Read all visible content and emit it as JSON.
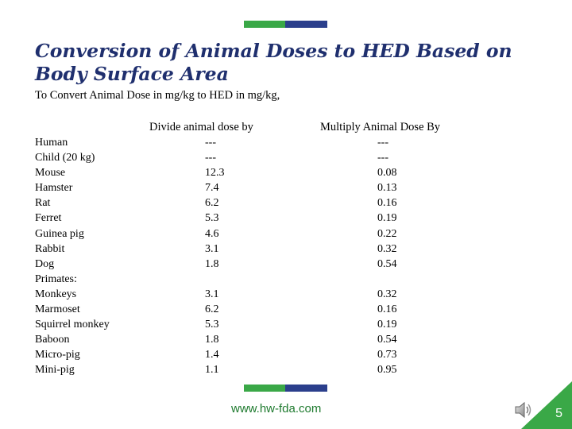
{
  "slide": {
    "title": "Conversion of Animal Doses to HED Based on Body Surface Area",
    "subtitle": "To Convert Animal Dose in mg/kg to HED in mg/kg,",
    "footer_url": "www.hw-fda.com",
    "page_number": "5"
  },
  "table": {
    "headers": {
      "divide": "Divide animal dose by",
      "multiply": "Multiply Animal Dose By"
    },
    "rows": [
      {
        "species": "Human",
        "divide": "---",
        "multiply": "---"
      },
      {
        "species": "Child (20 kg)",
        "divide": "---",
        "multiply": "---"
      },
      {
        "species": "Mouse",
        "divide": "12.3",
        "multiply": "0.08"
      },
      {
        "species": "Hamster",
        "divide": "7.4",
        "multiply": "0.13"
      },
      {
        "species": "Rat",
        "divide": "6.2",
        "multiply": "0.16"
      },
      {
        "species": "Ferret",
        "divide": "5.3",
        "multiply": "0.19"
      },
      {
        "species": "Guinea pig",
        "divide": "4.6",
        "multiply": "0.22"
      },
      {
        "species": "Rabbit",
        "divide": "3.1",
        "multiply": "0.32"
      },
      {
        "species": "Dog",
        "divide": "1.8",
        "multiply": "0.54"
      },
      {
        "species": "Primates:",
        "divide": "",
        "multiply": ""
      },
      {
        "species": "Monkeys",
        "divide": "3.1",
        "multiply": "0.32"
      },
      {
        "species": "Marmoset",
        "divide": "6.2",
        "multiply": "0.16"
      },
      {
        "species": "Squirrel monkey",
        "divide": "5.3",
        "multiply": "0.19"
      },
      {
        "species": "Baboon",
        "divide": "1.8",
        "multiply": "0.54"
      },
      {
        "species": "Micro-pig",
        "divide": "1.4",
        "multiply": "0.73"
      },
      {
        "species": "Mini-pig",
        "divide": "1.1",
        "multiply": "0.95"
      }
    ]
  },
  "colors": {
    "title": "#1f2f6e",
    "accent_green": "#3aa847",
    "accent_blue": "#2b3f8c",
    "url_green": "#1e7a2e"
  },
  "icons": {
    "speaker": "speaker-icon"
  }
}
